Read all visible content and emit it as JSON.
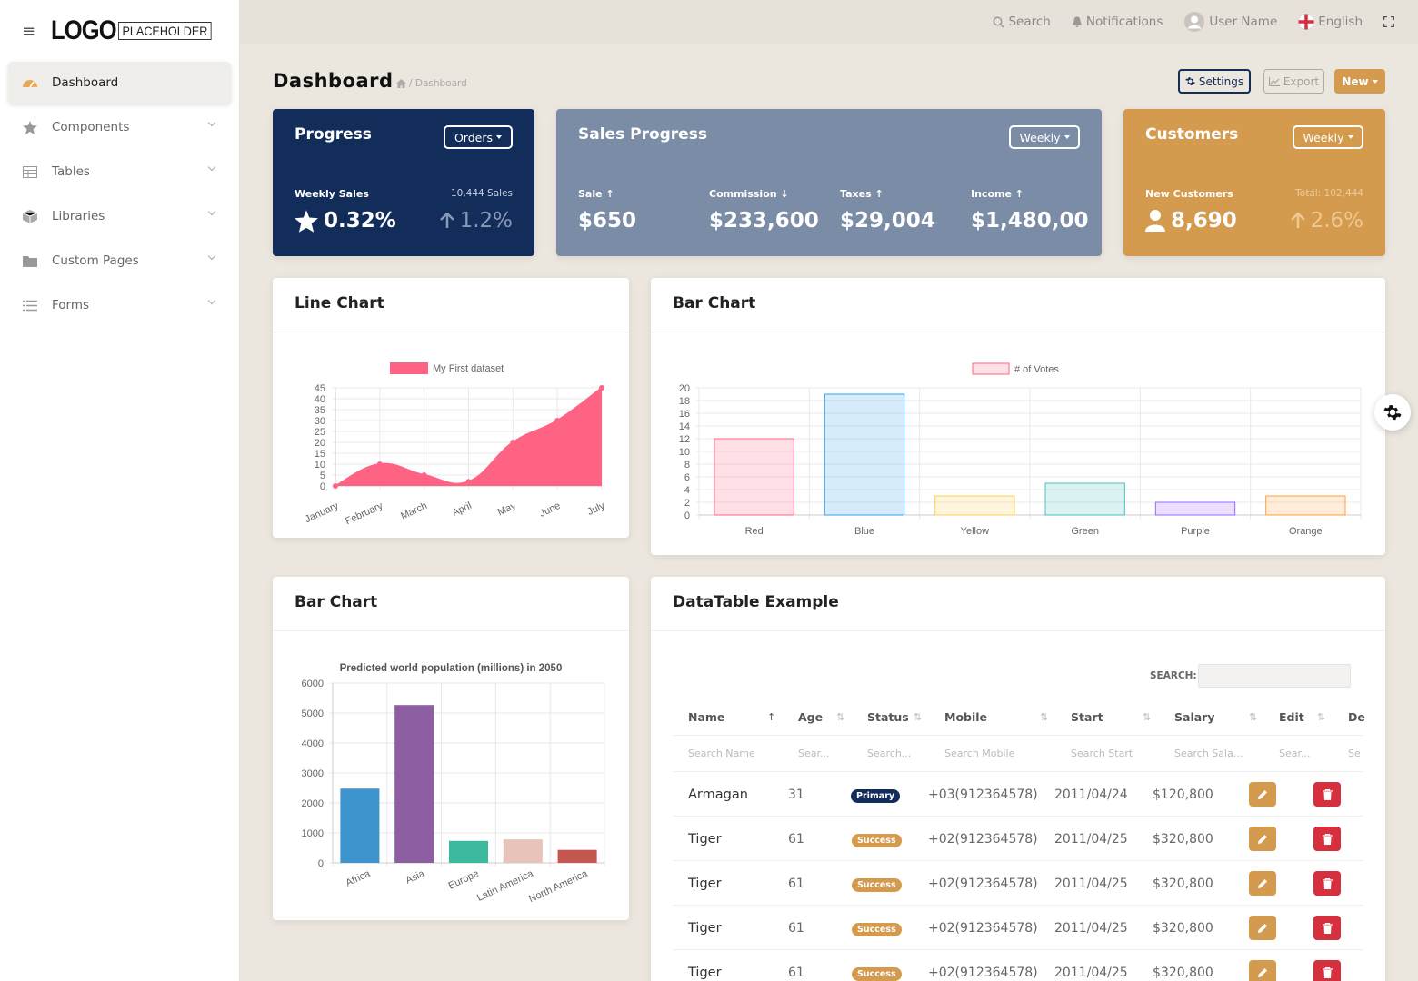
{
  "sidebar": {
    "logo_text": "LOGO",
    "logo_box": "PLACEHOLDER",
    "items": [
      {
        "label": "Dashboard",
        "icon": "dashboard-icon"
      },
      {
        "label": "Components",
        "icon": "star-icon"
      },
      {
        "label": "Tables",
        "icon": "table-icon"
      },
      {
        "label": "Libraries",
        "icon": "cube-icon"
      },
      {
        "label": "Custom Pages",
        "icon": "folder-icon"
      },
      {
        "label": "Forms",
        "icon": "list-icon"
      }
    ]
  },
  "topbar": {
    "search": "Search",
    "notifications": "Notifications",
    "user": "User Name",
    "language": "English"
  },
  "page": {
    "title": "Dashboard",
    "breadcrumb": "/ Dashboard",
    "settings": "Settings",
    "export": "Export",
    "new": "New"
  },
  "cards": {
    "progress": {
      "title": "Progress",
      "dropdown": "Orders",
      "label": "Weekly Sales",
      "value": "0.32%",
      "sales": "10,444 Sales",
      "change": "1.2%"
    },
    "sales": {
      "title": "Sales Progress",
      "dropdown": "Weekly",
      "items": [
        {
          "label": "Sale",
          "value": "$650",
          "dir": "up"
        },
        {
          "label": "Commission",
          "value": "$233,600",
          "dir": "down"
        },
        {
          "label": "Taxes",
          "value": "$29,004",
          "dir": "up"
        },
        {
          "label": "Income",
          "value": "$1,480,00",
          "dir": "up"
        }
      ]
    },
    "customers": {
      "title": "Customers",
      "dropdown": "Weekly",
      "label": "New Customers",
      "value": "8,690",
      "total": "Total: 102,444",
      "change": "2.6%"
    }
  },
  "colors": {
    "navy": "#132d5b",
    "slate": "#7b8ca6",
    "orange": "#d49a4e",
    "pink": "#ff6384",
    "blue": "#36a2eb",
    "red": "#d6303f"
  },
  "line_card_title": "Line Chart",
  "bar_card_title": "Bar Chart",
  "bar2_card_title": "Bar Chart",
  "table_card_title": "DataTable Example",
  "chart_data": [
    {
      "type": "area",
      "title": "",
      "legend": [
        "My First dataset"
      ],
      "categories": [
        "January",
        "February",
        "March",
        "April",
        "May",
        "June",
        "July"
      ],
      "series": [
        {
          "name": "My First dataset",
          "values": [
            0,
            10,
            5,
            2,
            20,
            30,
            45
          ]
        }
      ],
      "ylim": [
        0,
        45
      ],
      "yticks": [
        0,
        5,
        10,
        15,
        20,
        25,
        30,
        35,
        40,
        45
      ]
    },
    {
      "type": "bar",
      "title": "",
      "legend": [
        "# of Votes"
      ],
      "categories": [
        "Red",
        "Blue",
        "Yellow",
        "Green",
        "Purple",
        "Orange"
      ],
      "series": [
        {
          "name": "# of Votes",
          "values": [
            12,
            19,
            3,
            5,
            2,
            3
          ]
        }
      ],
      "ylim": [
        0,
        20
      ],
      "yticks": [
        0,
        2,
        4,
        6,
        8,
        10,
        12,
        14,
        16,
        18,
        20
      ]
    },
    {
      "type": "bar",
      "title": "Predicted world population (millions) in 2050",
      "categories": [
        "Africa",
        "Asia",
        "Europe",
        "Latin America",
        "North America"
      ],
      "series": [
        {
          "values": [
            2478,
            5267,
            734,
            784,
            433
          ]
        }
      ],
      "ylim": [
        0,
        6000
      ],
      "yticks": [
        0,
        1000,
        2000,
        3000,
        4000,
        5000,
        6000
      ]
    }
  ],
  "table": {
    "search_label": "SEARCH:",
    "columns": [
      "Name",
      "Age",
      "Status",
      "Mobile",
      "Start",
      "Salary",
      "Edit",
      "De"
    ],
    "filters": [
      "Search Name",
      "Sear...",
      "Search...",
      "Search Mobile",
      "Search Start",
      "Search Sala...",
      "Sear...",
      "Se"
    ],
    "rows": [
      {
        "name": "Armagan",
        "age": "31",
        "status": "Primary",
        "mobile": "+03(912364578)",
        "start": "2011/04/24",
        "salary": "$120,800"
      },
      {
        "name": "Tiger",
        "age": "61",
        "status": "Success",
        "mobile": "+02(912364578)",
        "start": "2011/04/25",
        "salary": "$320,800"
      },
      {
        "name": "Tiger",
        "age": "61",
        "status": "Success",
        "mobile": "+02(912364578)",
        "start": "2011/04/25",
        "salary": "$320,800"
      },
      {
        "name": "Tiger",
        "age": "61",
        "status": "Success",
        "mobile": "+02(912364578)",
        "start": "2011/04/25",
        "salary": "$320,800"
      },
      {
        "name": "Tiger",
        "age": "61",
        "status": "Success",
        "mobile": "+02(912364578)",
        "start": "2011/04/25",
        "salary": "$320,800"
      }
    ]
  }
}
